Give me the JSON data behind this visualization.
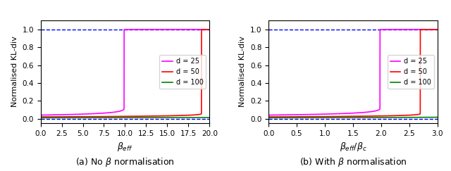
{
  "d_values": [
    25,
    50,
    100
  ],
  "colors": [
    "magenta",
    "red",
    "green"
  ],
  "legend_labels": [
    "d = 25",
    "d = 50",
    "d = 100"
  ],
  "ylabel": "Normalised KL-div",
  "xlabel_left": "$\\beta_{eff}$",
  "xlabel_right": "$\\beta_{eff}/\\beta_c$",
  "caption_left": "(a) No $\\beta$ normalisation",
  "caption_right": "(b) With $\\beta$ normalisation",
  "xlim_left": [
    0.0,
    20.0
  ],
  "xlim_right": [
    0.0,
    3.0
  ],
  "ylim": [
    -0.05,
    1.1
  ],
  "yticks": [
    0.0,
    0.2,
    0.4,
    0.6,
    0.8,
    1.0
  ],
  "xticks_left": [
    0.0,
    2.5,
    5.0,
    7.5,
    10.0,
    12.5,
    15.0,
    17.5,
    20.0
  ],
  "xticks_right": [
    0.0,
    0.5,
    1.0,
    1.5,
    2.0,
    2.5,
    3.0
  ],
  "hline_y0": 0.0,
  "hline_y1": 1.0,
  "hline_color": "blue",
  "hline_lw": 1.0
}
